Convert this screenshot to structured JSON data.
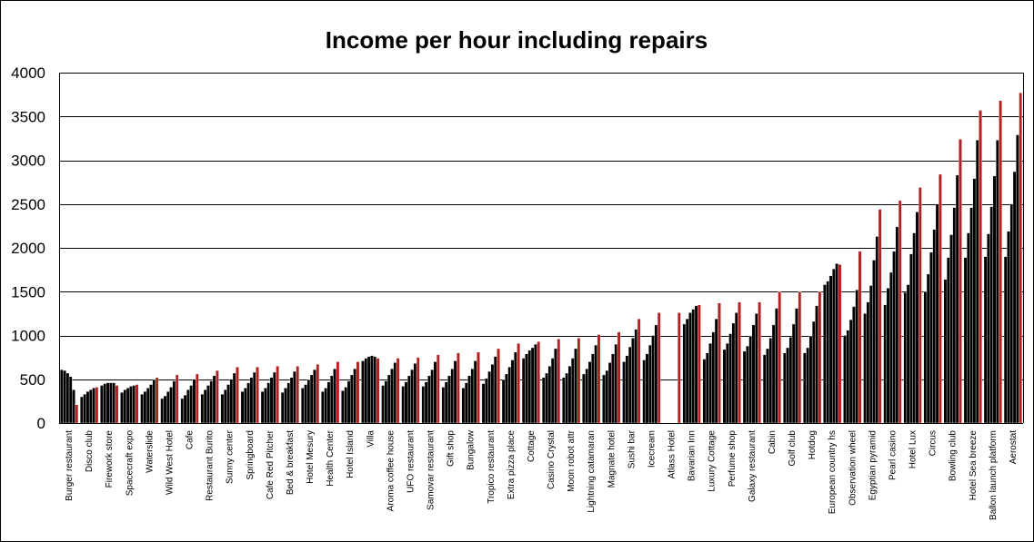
{
  "chart_data": {
    "type": "bar",
    "title": "Income per hour including repairs",
    "xlabel": "",
    "ylabel": "",
    "ylim": [
      0,
      4000
    ],
    "yticks": [
      0,
      500,
      1000,
      1500,
      2000,
      2500,
      3000,
      3500,
      4000
    ],
    "grid": true,
    "legend": "none",
    "colors": {
      "bar_fill": "#000000",
      "last_bar_fill": "#b22222",
      "bar_edge": "#ffffff",
      "gridline": "#000000",
      "frame": "#000000"
    },
    "categories": [
      "Burger restaurant",
      "Disco club",
      "Firework store",
      "Spacecraft expo",
      "Waterslide",
      "Wild West Hotel",
      "Cafe",
      "Restaurant Burito",
      "Sunny center",
      "Springboard",
      "Cafe Red Pitcher",
      "Bed & breakfast",
      "Hotel Mesury",
      "Health Center",
      "Hotel Island",
      "Villa",
      "Aroma coffee house",
      "UFO restaurant",
      "Samovar restaurant",
      "Gift shop",
      "Bungalow",
      "Tropico restaurant",
      "Extra pizza place",
      "Cottage",
      "Casino Crystal",
      "Moon robot attr",
      "Lightning catamaran",
      "Magnate hotel",
      "Sushi bar",
      "Icecream",
      "Atlass Hotel",
      "Bavarian Inn",
      "Luxury Cottage",
      "Perfume shop",
      "Galaxy restaurant",
      "Cabin",
      "Golf club",
      "Hotdog",
      "European country hs",
      "Observation wheel",
      "Egyptian pyramid",
      "Pearl casino",
      "Hotel Lux",
      "Circus",
      "Bowling club",
      "Hotel Sea breeze",
      "Ballon launch platform",
      "Aerostat"
    ],
    "series_values": [
      [
        610,
        600,
        570,
        530,
        380,
        210
      ],
      [
        300,
        330,
        360,
        380,
        400,
        410
      ],
      [
        430,
        450,
        460,
        460,
        460,
        430
      ],
      [
        350,
        380,
        400,
        420,
        430,
        440
      ],
      [
        330,
        360,
        400,
        440,
        490,
        520
      ],
      [
        280,
        310,
        360,
        410,
        480,
        550
      ],
      [
        280,
        320,
        380,
        430,
        500,
        560
      ],
      [
        330,
        380,
        430,
        480,
        540,
        600
      ],
      [
        330,
        380,
        440,
        500,
        570,
        640
      ],
      [
        360,
        400,
        460,
        520,
        580,
        640
      ],
      [
        360,
        400,
        460,
        520,
        580,
        650
      ],
      [
        350,
        400,
        460,
        520,
        590,
        650
      ],
      [
        400,
        440,
        490,
        550,
        610,
        670
      ],
      [
        360,
        400,
        470,
        540,
        620,
        700
      ],
      [
        370,
        410,
        480,
        550,
        620,
        700
      ],
      [
        710,
        740,
        760,
        770,
        760,
        740
      ],
      [
        430,
        480,
        550,
        620,
        690,
        740
      ],
      [
        420,
        470,
        540,
        610,
        680,
        750
      ],
      [
        420,
        470,
        540,
        610,
        700,
        780
      ],
      [
        410,
        470,
        540,
        620,
        710,
        800
      ],
      [
        400,
        460,
        540,
        620,
        710,
        810
      ],
      [
        450,
        510,
        590,
        670,
        760,
        850
      ],
      [
        490,
        560,
        640,
        720,
        810,
        910
      ],
      [
        740,
        790,
        830,
        860,
        900,
        930
      ],
      [
        520,
        570,
        650,
        740,
        850,
        960
      ],
      [
        520,
        570,
        650,
        740,
        850,
        970
      ],
      [
        560,
        620,
        700,
        790,
        890,
        1010
      ],
      [
        550,
        600,
        690,
        790,
        900,
        1040
      ],
      [
        700,
        770,
        870,
        970,
        1070,
        1190
      ],
      [
        720,
        790,
        890,
        1000,
        1120,
        1260
      ],
      [
        0,
        0,
        0,
        0,
        0,
        1260
      ],
      [
        1130,
        1190,
        1260,
        1300,
        1340,
        1350
      ],
      [
        730,
        800,
        910,
        1040,
        1190,
        1370
      ],
      [
        840,
        910,
        1020,
        1140,
        1260,
        1380
      ],
      [
        820,
        880,
        990,
        1120,
        1250,
        1380
      ],
      [
        780,
        850,
        970,
        1120,
        1310,
        1500
      ],
      [
        800,
        860,
        980,
        1130,
        1310,
        1500
      ],
      [
        800,
        860,
        990,
        1160,
        1340,
        1500
      ],
      [
        1580,
        1620,
        1680,
        1760,
        1820,
        1810
      ],
      [
        1000,
        1060,
        1180,
        1330,
        1520,
        1960
      ],
      [
        1250,
        1380,
        1570,
        1860,
        2130,
        2440
      ],
      [
        1350,
        1540,
        1720,
        1960,
        2240,
        2540
      ],
      [
        1490,
        1580,
        1930,
        2170,
        2410,
        2690
      ],
      [
        1500,
        1700,
        1950,
        2210,
        2500,
        2840
      ],
      [
        1640,
        1890,
        2150,
        2460,
        2830,
        3240
      ],
      [
        1890,
        2170,
        2460,
        2790,
        3230,
        3570
      ],
      [
        1900,
        2160,
        2470,
        2820,
        3230,
        3680
      ],
      [
        1900,
        2190,
        2500,
        2870,
        3290,
        3770
      ]
    ]
  }
}
